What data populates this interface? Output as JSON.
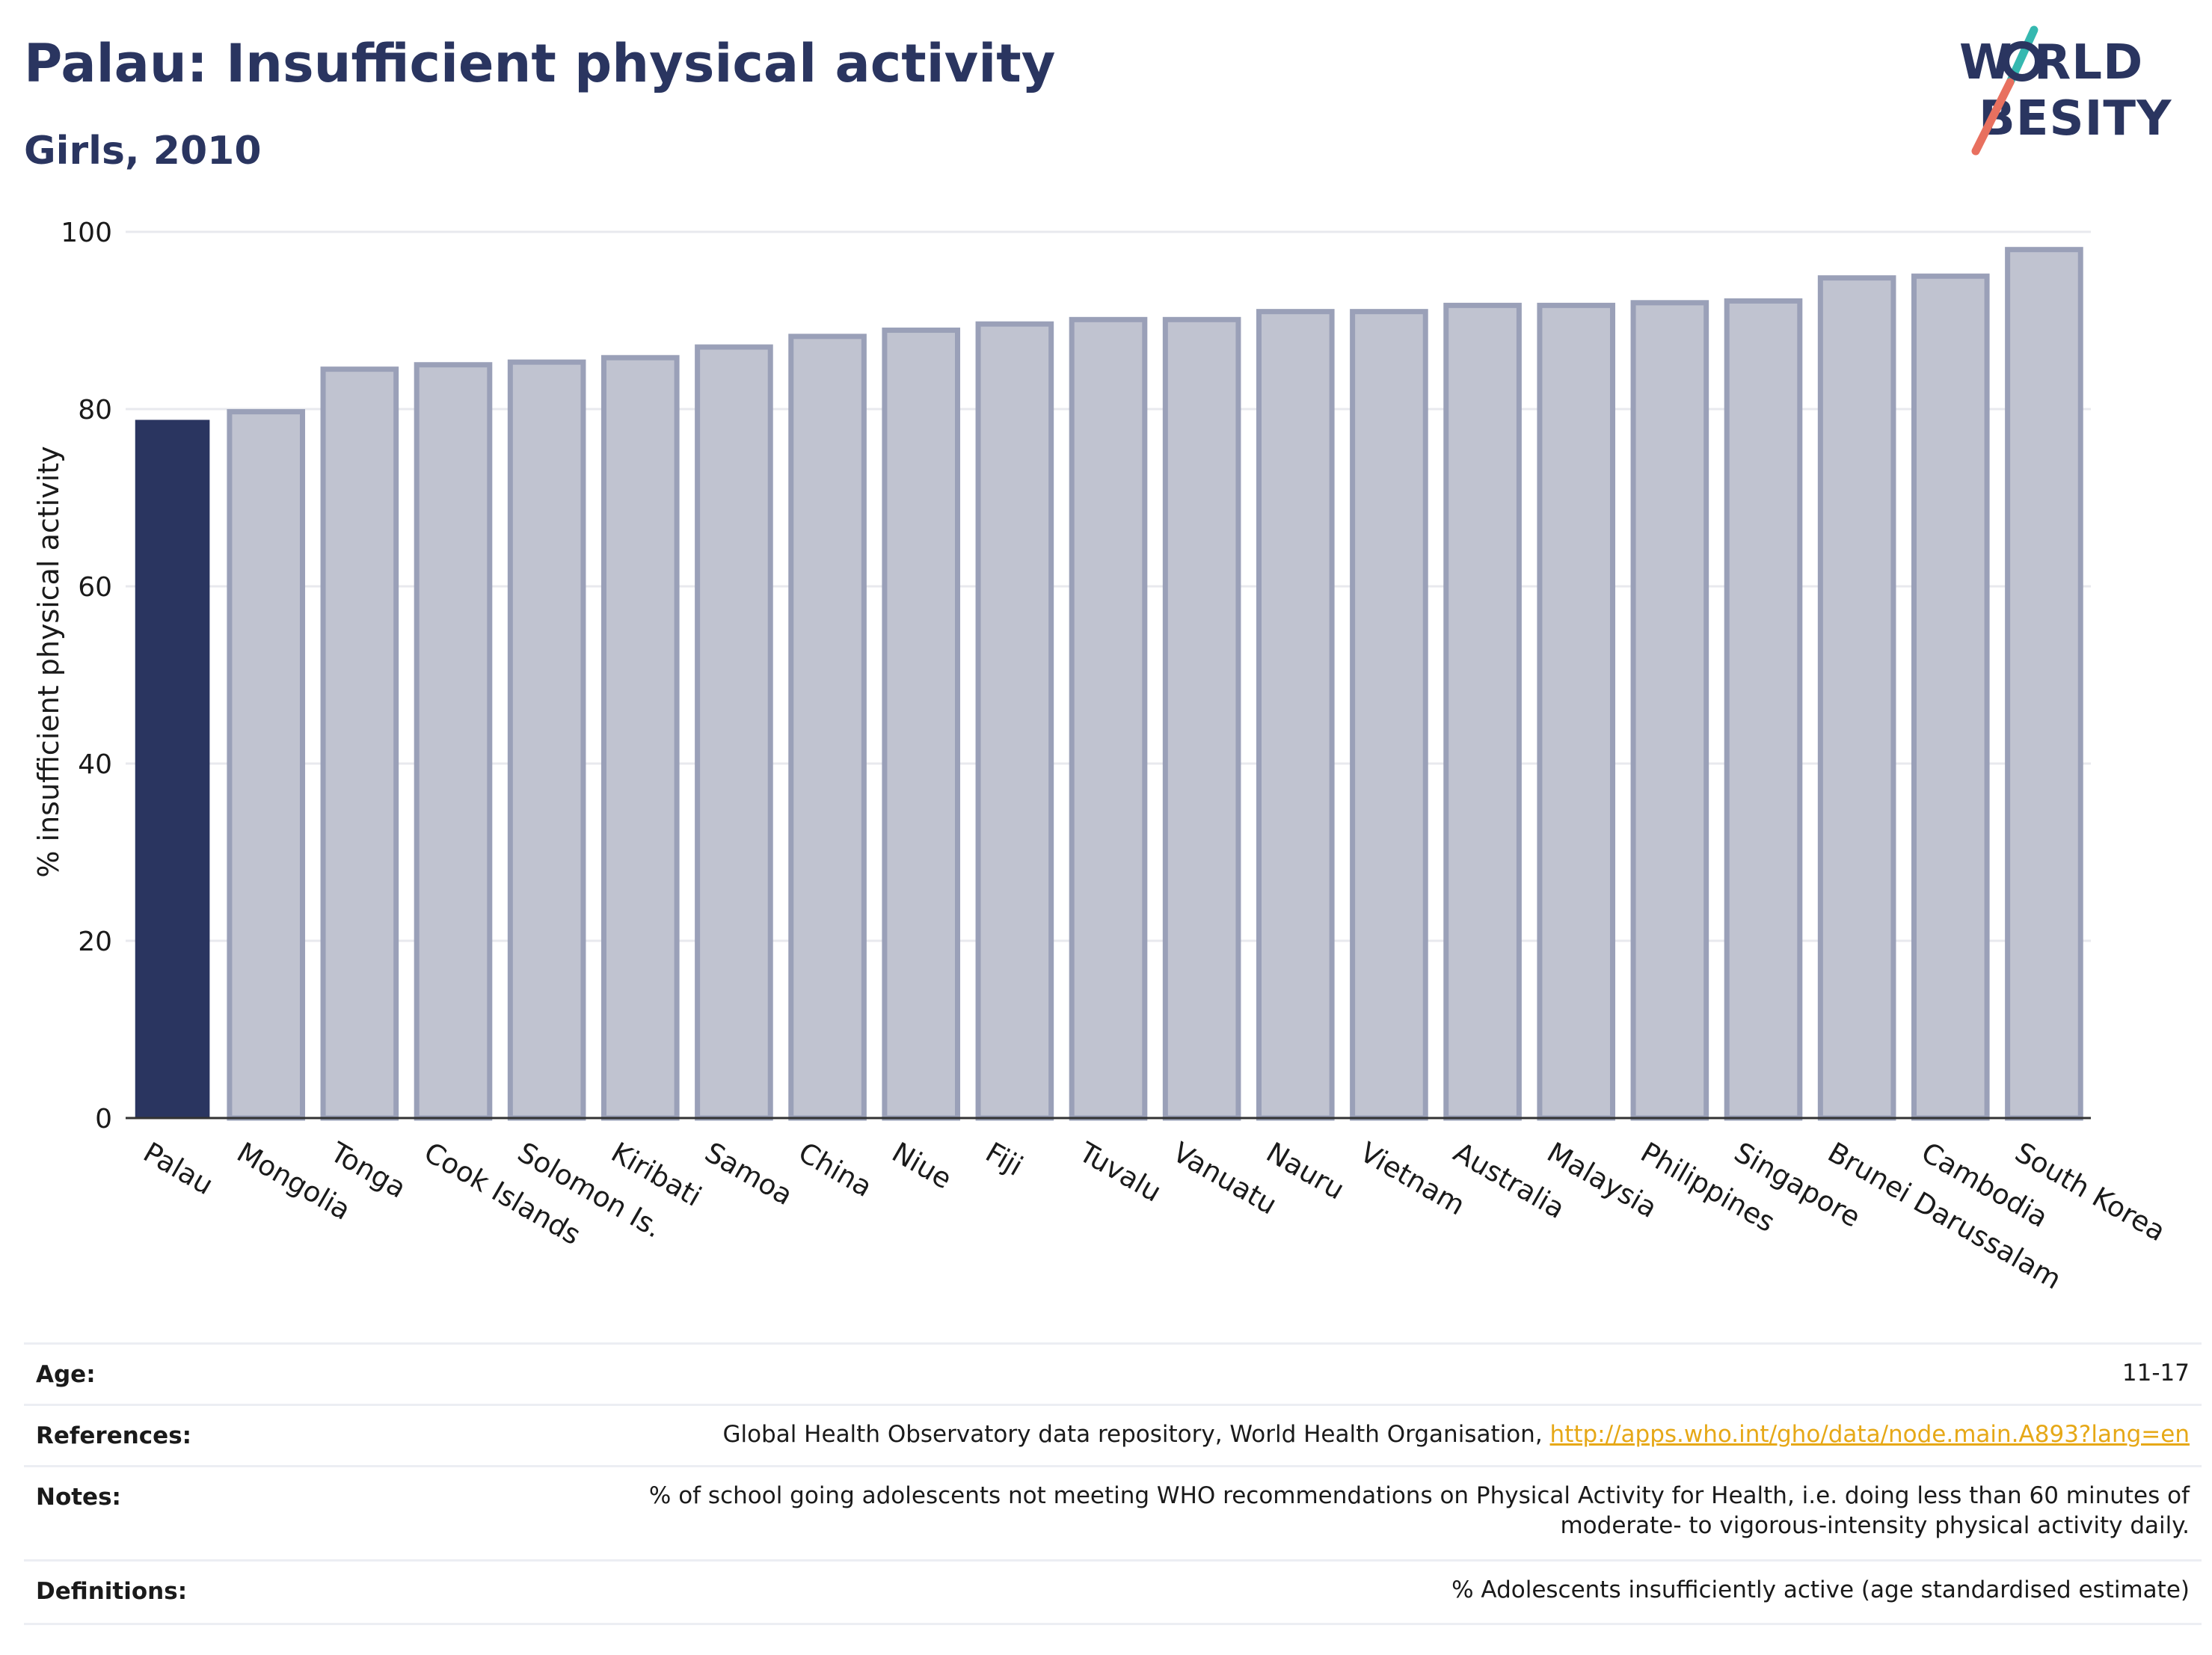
{
  "header": {
    "title": "Palau: Insufficient physical activity",
    "subtitle": "Girls, 2010"
  },
  "logo": {
    "line1": "WORLD",
    "line2": "OBESITY",
    "accent_teal": "#35b8b0",
    "accent_coral": "#e8705f",
    "text_color": "#2a3560"
  },
  "colors": {
    "highlight": "#2a3560",
    "bar_fill": "#c0c3d0",
    "bar_stroke": "#9aa0b8",
    "grid": "#e8e9ee",
    "axis": "#333333"
  },
  "chart_data": {
    "type": "bar",
    "ylabel": "% insufficient physical activity",
    "ylim": [
      0,
      100
    ],
    "yticks": [
      0,
      20,
      40,
      60,
      80,
      100
    ],
    "grid": true,
    "highlight_category": "Palau",
    "categories": [
      "Palau",
      "Mongolia",
      "Tonga",
      "Cook Islands",
      "Solomon Is.",
      "Kiribati",
      "Samoa",
      "China",
      "Niue",
      "Fiji",
      "Tuvalu",
      "Vanuatu",
      "Nauru",
      "Vietnam",
      "Australia",
      "Malaysia",
      "Philippines",
      "Singapore",
      "Brunei Darussalam",
      "Cambodia",
      "South Korea"
    ],
    "values": [
      78.7,
      79.7,
      84.5,
      85.0,
      85.3,
      85.8,
      87.0,
      88.2,
      88.9,
      89.6,
      90.1,
      90.1,
      91.0,
      91.0,
      91.7,
      91.7,
      92.0,
      92.2,
      94.8,
      95.0,
      98.0
    ]
  },
  "meta": {
    "age_label": "Age:",
    "age_value": "11-17",
    "references_label": "References:",
    "references_text": "Global Health Observatory data repository, World Health Organisation, ",
    "references_link": "http://apps.who.int/gho/data/node.main.A893?lang=en",
    "notes_label": "Notes:",
    "notes_line1": "% of school going adolescents not meeting WHO recommendations on Physical Activity for Health, i.e. doing less than 60 minutes of",
    "notes_line2": "moderate- to vigorous-intensity physical activity daily.",
    "definitions_label": "Definitions:",
    "definitions_value": "% Adolescents insufficiently active (age standardised estimate)"
  }
}
